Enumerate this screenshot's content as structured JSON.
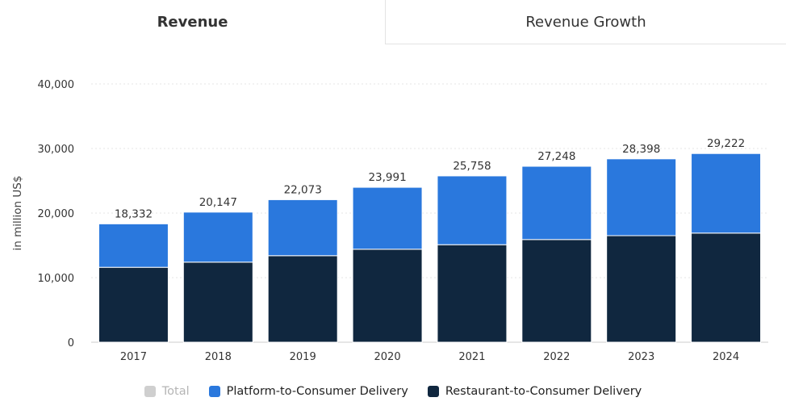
{
  "tabs": [
    {
      "label": "Revenue",
      "active": true
    },
    {
      "label": "Revenue Growth",
      "active": false
    }
  ],
  "colors": {
    "platform": "#2a78dd",
    "restaurant": "#10273f",
    "total": "#cfcfcf",
    "grid": "#e6e6e6"
  },
  "chart_data": {
    "type": "bar",
    "stacked": true,
    "categories": [
      "2017",
      "2018",
      "2019",
      "2020",
      "2021",
      "2022",
      "2023",
      "2024"
    ],
    "series": [
      {
        "name": "Restaurant-to-Consumer Delivery",
        "values": [
          11600,
          12400,
          13400,
          14400,
          15100,
          15900,
          16500,
          16900
        ]
      },
      {
        "name": "Platform-to-Consumer Delivery",
        "values": [
          6732,
          7747,
          8673,
          9591,
          10658,
          11348,
          11898,
          12322
        ]
      }
    ],
    "totals": [
      18332,
      20147,
      22073,
      23991,
      25758,
      27248,
      28398,
      29222
    ],
    "total_labels": [
      "18,332",
      "20,147",
      "22,073",
      "23,991",
      "25,758",
      "27,248",
      "28,398",
      "29,222"
    ],
    "ylabel": "in million US$",
    "ylim": [
      0,
      40000
    ],
    "yticks": [
      0,
      10000,
      20000,
      30000,
      40000
    ],
    "ytick_labels": [
      "0",
      "10,000",
      "20,000",
      "30,000",
      "40,000"
    ],
    "grid": true,
    "legend": {
      "placement": "bottom",
      "items": [
        {
          "label": "Total",
          "enabled": false
        },
        {
          "label": "Platform-to-Consumer Delivery",
          "enabled": true
        },
        {
          "label": "Restaurant-to-Consumer Delivery",
          "enabled": true
        }
      ]
    }
  }
}
